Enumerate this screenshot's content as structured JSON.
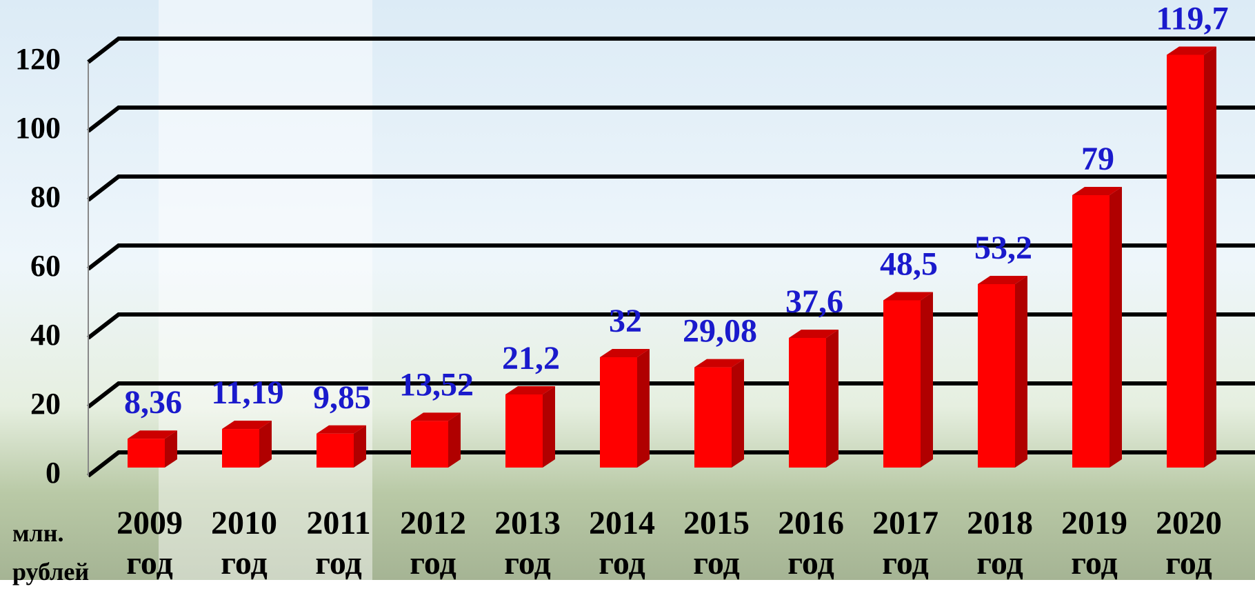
{
  "chart_data": {
    "type": "bar3d",
    "y_label": "млн. рублей",
    "categories": [
      "2009 год",
      "2010 год",
      "2011 год",
      "2012 год",
      "2013 год",
      "2014 год",
      "2015 год",
      "2016 год",
      "2017 год",
      "2018 год",
      "2019 год",
      "2020 год"
    ],
    "values": [
      8.36,
      11.19,
      9.85,
      13.52,
      21.2,
      32,
      29.08,
      37.6,
      48.5,
      53.2,
      79,
      119.7
    ],
    "value_labels": [
      "8,36",
      "11,19",
      "9,85",
      "13,52",
      "21,2",
      "32",
      "29,08",
      "37,6",
      "48,5",
      "53,2",
      "79",
      "119,7"
    ],
    "color": "#ff0000",
    "label_color": "#1a1acc",
    "ylim": [
      0,
      120
    ],
    "yticks": [
      0,
      20,
      40,
      60,
      80,
      100,
      120
    ],
    "grid": true
  }
}
